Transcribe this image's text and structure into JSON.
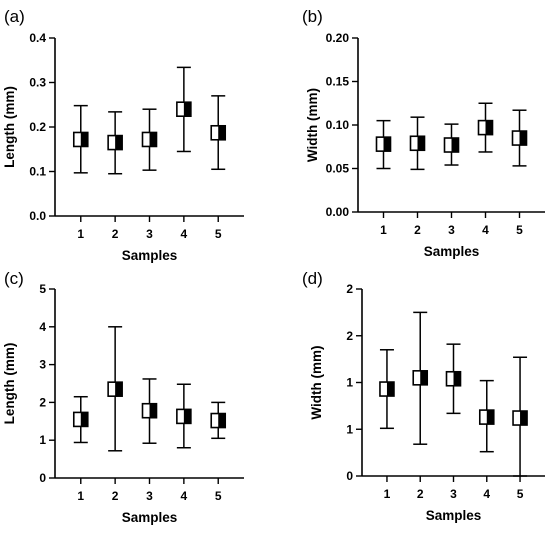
{
  "chart_data": [
    {
      "type": "scatter",
      "panel_label": "(a)",
      "xlabel": "Samples",
      "ylabel": "Length (mm)",
      "categories": [
        "1",
        "2",
        "3",
        "4",
        "5"
      ],
      "ylim": [
        0,
        0.4
      ],
      "yticks": [
        "0.0",
        "0.1",
        "0.2",
        "0.3",
        "0.4"
      ],
      "series": [
        {
          "values": [
            0.172,
            0.165,
            0.172,
            0.24,
            0.187
          ],
          "error_low": [
            0.097,
            0.095,
            0.103,
            0.145,
            0.105
          ],
          "error_high": [
            0.248,
            0.234,
            0.24,
            0.334,
            0.27
          ]
        }
      ],
      "marker": "square, half-filled",
      "grid": false
    },
    {
      "type": "scatter",
      "panel_label": "(b)",
      "xlabel": "Samples",
      "ylabel": "Width (mm)",
      "categories": [
        "1",
        "2",
        "3",
        "4",
        "5"
      ],
      "ylim": [
        0,
        0.2
      ],
      "yticks": [
        "0.00",
        "0.05",
        "0.10",
        "0.15",
        "0.20"
      ],
      "series": [
        {
          "values": [
            0.078,
            0.079,
            0.077,
            0.097,
            0.085
          ],
          "error_low": [
            0.05,
            0.049,
            0.054,
            0.069,
            0.053
          ],
          "error_high": [
            0.105,
            0.109,
            0.101,
            0.125,
            0.117
          ]
        }
      ],
      "marker": "square, half-filled",
      "grid": false
    },
    {
      "type": "scatter",
      "panel_label": "(c)",
      "xlabel": "Samples",
      "ylabel": "Length (mm)",
      "categories": [
        "1",
        "2",
        "3",
        "4",
        "5"
      ],
      "ylim": [
        0,
        5
      ],
      "yticks": [
        "0",
        "1",
        "2",
        "3",
        "4",
        "5"
      ],
      "series": [
        {
          "values": [
            1.55,
            2.35,
            1.78,
            1.63,
            1.52
          ],
          "error_low": [
            0.94,
            0.72,
            0.92,
            0.8,
            1.05
          ],
          "error_high": [
            2.15,
            4.0,
            2.62,
            2.48,
            2.0
          ]
        }
      ],
      "marker": "square, half-filled",
      "grid": false
    },
    {
      "type": "scatter",
      "panel_label": "(d)",
      "xlabel": "Samples",
      "ylabel": "Width (mm)",
      "categories": [
        "1",
        "2",
        "3",
        "4",
        "5"
      ],
      "ylim": [
        0,
        2
      ],
      "yticks": [
        "0",
        "1",
        "1",
        "2",
        "2"
      ],
      "series": [
        {
          "values": [
            0.93,
            1.05,
            1.04,
            0.63,
            0.62
          ],
          "error_low": [
            0.51,
            0.34,
            0.67,
            0.26,
            0.0
          ],
          "error_high": [
            1.35,
            1.75,
            1.41,
            1.02,
            1.27
          ]
        }
      ],
      "marker": "square, half-filled",
      "grid": false
    }
  ]
}
